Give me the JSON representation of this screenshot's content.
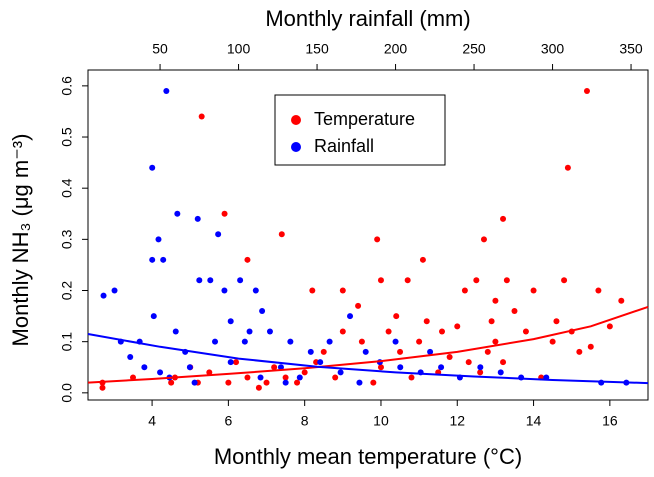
{
  "chart_data": {
    "type": "scatter",
    "xlabel": "Monthly mean temperature (°C)",
    "x2label": "Monthly rainfall (mm)",
    "ylabel": "Monthly NH₃ (μg m⁻³)",
    "xlim": [
      2.32,
      17.0
    ],
    "xticks": [
      4,
      6,
      8,
      10,
      12,
      14,
      16
    ],
    "x2lim": [
      4.1,
      360.8
    ],
    "x2ticks": [
      50,
      100,
      150,
      200,
      250,
      300,
      350
    ],
    "ylim": [
      -0.014,
      0.631
    ],
    "yticks": [
      {
        "value": 0,
        "label": "0.0"
      },
      0.1,
      0.2,
      0.3,
      0.4,
      0.5,
      0.6
    ],
    "legend": "top",
    "series": [
      {
        "name": "Temperature",
        "color": "#ff0000",
        "x": [
          2.7,
          2.7,
          3.5,
          4.6,
          5.3,
          5.9,
          6.5,
          7.4,
          8.2,
          9.0,
          9.4,
          9.9,
          10.0,
          10.7,
          11.1,
          10.4,
          11.2,
          11.6,
          12.0,
          12.2,
          12.5,
          12.7,
          13.2,
          13.3,
          13.0,
          13.5,
          14.0,
          14.8,
          14.9,
          15.4,
          15.7,
          16.3,
          14.5,
          15.0,
          15.2,
          13.8,
          13.0,
          12.8,
          12.3,
          11.8,
          11.0,
          10.5,
          10.0,
          9.5,
          9.0,
          8.5,
          8.0,
          7.5,
          7.0,
          6.5,
          6.0,
          5.5,
          5.0,
          4.5,
          6.8,
          7.8,
          8.8,
          9.8,
          10.8,
          11.5,
          12.6,
          13.2,
          14.2,
          15.5,
          16.0,
          14.6,
          12.9,
          10.2,
          8.3,
          7.2,
          6.2,
          5.2
        ],
        "values": [
          0.02,
          0.01,
          0.03,
          0.03,
          0.54,
          0.35,
          0.26,
          0.31,
          0.2,
          0.2,
          0.17,
          0.3,
          0.22,
          0.22,
          0.26,
          0.15,
          0.14,
          0.12,
          0.13,
          0.2,
          0.22,
          0.3,
          0.34,
          0.22,
          0.18,
          0.16,
          0.2,
          0.22,
          0.44,
          0.59,
          0.2,
          0.18,
          0.1,
          0.12,
          0.08,
          0.12,
          0.1,
          0.08,
          0.06,
          0.07,
          0.1,
          0.08,
          0.05,
          0.1,
          0.12,
          0.08,
          0.04,
          0.03,
          0.02,
          0.03,
          0.02,
          0.04,
          0.05,
          0.02,
          0.01,
          0.02,
          0.03,
          0.02,
          0.03,
          0.04,
          0.04,
          0.06,
          0.03,
          0.09,
          0.13,
          0.14,
          0.14,
          0.12,
          0.06,
          0.05,
          0.06,
          0.02
        ]
      },
      {
        "name": "Rainfall",
        "color": "#0000ff",
        "axis": "x2",
        "x": [
          14,
          21,
          45,
          49,
          54,
          61,
          74,
          87,
          45,
          52,
          46,
          25,
          31,
          37,
          75,
          82,
          91,
          101,
          111,
          115,
          107,
          120,
          133,
          146,
          158,
          171,
          181,
          190,
          203,
          216,
          229,
          241,
          254,
          267,
          280,
          296,
          331,
          347,
          69,
          60,
          66,
          95,
          127,
          139,
          165,
          177,
          95,
          104,
          85,
          56,
          40,
          50,
          72,
          114,
          130,
          152,
          200,
          222
        ],
        "values": [
          0.19,
          0.2,
          0.44,
          0.3,
          0.59,
          0.35,
          0.34,
          0.31,
          0.26,
          0.26,
          0.15,
          0.1,
          0.07,
          0.1,
          0.22,
          0.22,
          0.2,
          0.22,
          0.2,
          0.16,
          0.12,
          0.12,
          0.1,
          0.08,
          0.1,
          0.15,
          0.08,
          0.06,
          0.05,
          0.04,
          0.05,
          0.03,
          0.05,
          0.04,
          0.03,
          0.03,
          0.02,
          0.02,
          0.05,
          0.12,
          0.08,
          0.06,
          0.05,
          0.03,
          0.04,
          0.02,
          0.14,
          0.1,
          0.1,
          0.03,
          0.05,
          0.04,
          0.02,
          0.03,
          0.02,
          0.06,
          0.1,
          0.08
        ]
      }
    ],
    "fits": [
      {
        "color": "#ff0000",
        "x": [
          2.32,
          4,
          6,
          8,
          10,
          12,
          14,
          15.5,
          17.0
        ],
        "values": [
          0.02,
          0.027,
          0.037,
          0.048,
          0.062,
          0.08,
          0.105,
          0.13,
          0.168
        ]
      },
      {
        "color": "#0000ff",
        "axis": "x2",
        "x": [
          4.1,
          50,
          100,
          150,
          200,
          250,
          300,
          360.8
        ],
        "values": [
          0.115,
          0.09,
          0.067,
          0.051,
          0.04,
          0.032,
          0.025,
          0.019
        ]
      }
    ]
  }
}
